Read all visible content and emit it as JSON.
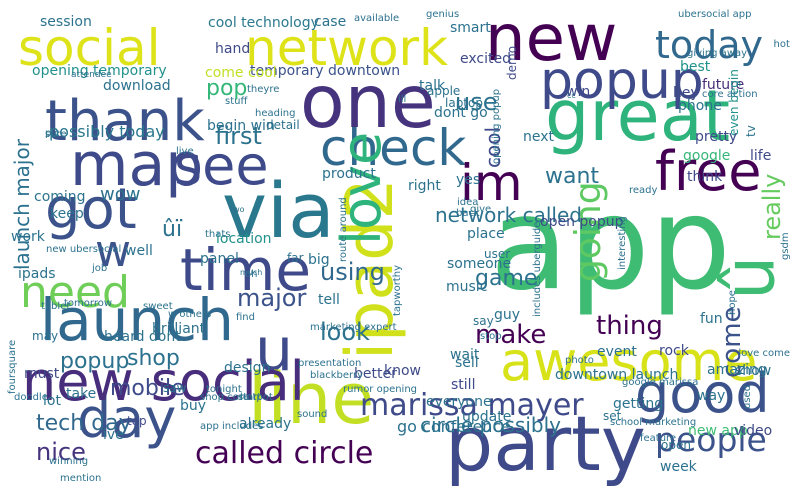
{
  "word_cloud": {
    "words": [
      {
        "text": "app",
        "color": "#3fbc73"
      },
      {
        "text": "new",
        "color": "#440154"
      },
      {
        "text": "social",
        "color": "#dde318"
      },
      {
        "text": "network",
        "color": "#dde318"
      },
      {
        "text": "today",
        "color": "#31688e"
      },
      {
        "text": "great",
        "color": "#2eb37c"
      },
      {
        "text": "popup",
        "color": "#3e4a89"
      },
      {
        "text": "one",
        "color": "#46337e"
      },
      {
        "text": "thank",
        "color": "#3b528b"
      },
      {
        "text": "check",
        "color": "#31688e"
      },
      {
        "text": "map",
        "color": "#3e4a89"
      },
      {
        "text": "see",
        "color": "#3e4a89"
      },
      {
        "text": "im",
        "color": "#440154"
      },
      {
        "text": "free",
        "color": "#440154"
      },
      {
        "text": "got",
        "color": "#3b528b"
      },
      {
        "text": "via",
        "color": "#2a788e"
      },
      {
        "text": "ipad2",
        "color": "#d0e11c"
      },
      {
        "text": "time",
        "color": "#3e4a89"
      },
      {
        "text": "going",
        "color": "#5ec962"
      },
      {
        "text": "launch",
        "color": "#31688e"
      },
      {
        "text": "w",
        "color": "#3b528b"
      },
      {
        "text": "u",
        "color": "#3e4a89"
      },
      {
        "text": "need",
        "color": "#6ece58"
      },
      {
        "text": "û",
        "color": "#3fbc73"
      },
      {
        "text": "ûï",
        "color": "#2c728e"
      },
      {
        "text": "awesome",
        "color": "#d8e219"
      },
      {
        "text": "good",
        "color": "#3b528b"
      },
      {
        "text": "line",
        "color": "#c2df23"
      },
      {
        "text": "party",
        "color": "#3e4a89"
      },
      {
        "text": "day",
        "color": "#3b528b"
      },
      {
        "text": "new social",
        "color": "#472d7b"
      },
      {
        "text": "marissa mayer",
        "color": "#3e4a89"
      },
      {
        "text": "people",
        "color": "#3b528b"
      },
      {
        "text": "called circle",
        "color": "#440154"
      },
      {
        "text": "love",
        "color": "#2eb37c"
      },
      {
        "text": "network called",
        "color": "#2c728e"
      },
      {
        "text": "first",
        "color": "#2c728e"
      },
      {
        "text": "pop",
        "color": "#35b779"
      },
      {
        "text": "use",
        "color": "#2c728e"
      },
      {
        "text": "want",
        "color": "#2c728e"
      },
      {
        "text": "cool",
        "color": "#3e4a89"
      },
      {
        "text": "really",
        "color": "#65cb5e"
      },
      {
        "text": "come",
        "color": "#3b528b"
      },
      {
        "text": "make",
        "color": "#440154"
      },
      {
        "text": "thing",
        "color": "#440154"
      },
      {
        "text": "look",
        "color": "#2c728e"
      },
      {
        "text": "major",
        "color": "#3b528b"
      },
      {
        "text": "game",
        "color": "#2c728e"
      },
      {
        "text": "using",
        "color": "#31688e"
      },
      {
        "text": "nice",
        "color": "#46337e"
      },
      {
        "text": "tech day",
        "color": "#31688e"
      },
      {
        "text": "mobile",
        "color": "#3e4a89"
      },
      {
        "text": "shop",
        "color": "#2c728e"
      },
      {
        "text": "popup",
        "color": "#2c728e"
      },
      {
        "text": "launch major",
        "color": "#2c728e"
      },
      {
        "text": "wow",
        "color": "#2c728e"
      },
      {
        "text": "circle possibly",
        "color": "#2c728e"
      },
      {
        "text": "go conference",
        "color": "#2c728e"
      },
      {
        "text": "cool technology",
        "color": "#2a788e"
      },
      {
        "text": "session",
        "color": "#2c728e"
      },
      {
        "text": "case",
        "color": "#2c728e"
      },
      {
        "text": "opening temporary",
        "color": "#21918c"
      },
      {
        "text": "temporary downtown",
        "color": "#3b528b"
      },
      {
        "text": "possibly today",
        "color": "#2a788e"
      },
      {
        "text": "open popup",
        "color": "#3e4a89"
      },
      {
        "text": "best",
        "color": "#21918c"
      },
      {
        "text": "phone",
        "color": "#2c728e"
      },
      {
        "text": "future",
        "color": "#472d7b"
      },
      {
        "text": "download",
        "color": "#2c728e"
      },
      {
        "text": "begin win",
        "color": "#2c728e"
      },
      {
        "text": "hand",
        "color": "#3e4a89"
      },
      {
        "text": "come cool",
        "color": "#c2df23"
      },
      {
        "text": "excited",
        "color": "#3e4a89"
      },
      {
        "text": "smart",
        "color": "#2c728e"
      },
      {
        "text": "demo",
        "color": "#3e4a89"
      },
      {
        "text": "talk",
        "color": "#2c728e"
      },
      {
        "text": "hey",
        "color": "#3e4a89"
      },
      {
        "text": "laptop",
        "color": "#2c728e"
      },
      {
        "text": "win",
        "color": "#3e4a89"
      },
      {
        "text": "dont go",
        "color": "#2c728e"
      },
      {
        "text": "next",
        "color": "#2c728e"
      },
      {
        "text": "think",
        "color": "#3e4a89"
      },
      {
        "text": "google",
        "color": "#35b779"
      },
      {
        "text": "even begin",
        "color": "#21918c"
      },
      {
        "text": "life",
        "color": "#3e4a89"
      },
      {
        "text": "pretty",
        "color": "#3e4a89"
      },
      {
        "text": "product",
        "color": "#2c728e"
      },
      {
        "text": "right",
        "color": "#2c728e"
      },
      {
        "text": "yes",
        "color": "#2c728e"
      },
      {
        "text": "coming",
        "color": "#2c728e"
      },
      {
        "text": "keep",
        "color": "#2c728e"
      },
      {
        "text": "work",
        "color": "#2c728e"
      },
      {
        "text": "location",
        "color": "#21918c"
      },
      {
        "text": "panel",
        "color": "#2c728e"
      },
      {
        "text": "big",
        "color": "#2c728e"
      },
      {
        "text": "ipads",
        "color": "#2c728e"
      },
      {
        "text": "well",
        "color": "#2c728e"
      },
      {
        "text": "far",
        "color": "#2c728e"
      },
      {
        "text": "tell",
        "color": "#2c728e"
      },
      {
        "text": "place",
        "color": "#2c728e"
      },
      {
        "text": "someone",
        "color": "#2c728e"
      },
      {
        "text": "user",
        "color": "#2c728e"
      },
      {
        "text": "music",
        "color": "#2c728e"
      },
      {
        "text": "guy",
        "color": "#2c728e"
      },
      {
        "text": "event",
        "color": "#2c728e"
      },
      {
        "text": "rock",
        "color": "#3e4a89"
      },
      {
        "text": "fun",
        "color": "#2c728e"
      },
      {
        "text": "amazing",
        "color": "#2c728e"
      },
      {
        "text": "show",
        "color": "#2c728e"
      },
      {
        "text": "may",
        "color": "#2c728e"
      },
      {
        "text": "brilliant",
        "color": "#2c728e"
      },
      {
        "text": "heard dont",
        "color": "#2c728e"
      },
      {
        "text": "design",
        "color": "#2c728e"
      },
      {
        "text": "better",
        "color": "#3e4a89"
      },
      {
        "text": "know",
        "color": "#3e4a89"
      },
      {
        "text": "wait",
        "color": "#2c728e"
      },
      {
        "text": "say",
        "color": "#2c728e"
      },
      {
        "text": "must",
        "color": "#3e4a89"
      },
      {
        "text": "lot",
        "color": "#2c728e"
      },
      {
        "text": "take",
        "color": "#2c728e"
      },
      {
        "text": "buy",
        "color": "#2c728e"
      },
      {
        "text": "already",
        "color": "#2c728e"
      },
      {
        "text": "still",
        "color": "#3e4a89"
      },
      {
        "text": "sell",
        "color": "#2c728e"
      },
      {
        "text": "update",
        "color": "#2c728e"
      },
      {
        "text": "everyone",
        "color": "#2c728e"
      },
      {
        "text": "downtown launch",
        "color": "#2c728e"
      },
      {
        "text": "getting",
        "color": "#2c728e"
      },
      {
        "text": "way",
        "color": "#2c728e"
      },
      {
        "text": "new app",
        "color": "#3fbc73"
      },
      {
        "text": "week",
        "color": "#2c728e"
      },
      {
        "text": "video",
        "color": "#3e4a89"
      },
      {
        "text": "ive",
        "color": "#2c728e"
      },
      {
        "text": "top",
        "color": "#3e4a89"
      },
      {
        "text": "saw",
        "color": "#2c728e"
      },
      {
        "text": "set",
        "color": "#2c728e"
      },
      {
        "text": "open",
        "color": "#2c728e"
      },
      {
        "text": "ubersocial app",
        "color": "#2c728e"
      },
      {
        "text": "giving away",
        "color": "#2c728e"
      },
      {
        "text": "core action",
        "color": "#2c728e"
      },
      {
        "text": "available",
        "color": "#2c728e"
      },
      {
        "text": "genius",
        "color": "#2c728e"
      },
      {
        "text": "attendee",
        "color": "#2c728e"
      },
      {
        "text": "stuff",
        "color": "#2c728e"
      },
      {
        "text": "heading",
        "color": "#2c728e"
      },
      {
        "text": "detail",
        "color": "#2c728e"
      },
      {
        "text": "theyre",
        "color": "#2c728e"
      },
      {
        "text": "apple",
        "color": "#2c728e"
      },
      {
        "text": "hot",
        "color": "#2c728e"
      },
      {
        "text": "ill",
        "color": "#2c728e"
      },
      {
        "text": "opening popup",
        "color": "#2c728e"
      },
      {
        "text": "cc",
        "color": "#2c728e"
      },
      {
        "text": "tv",
        "color": "#2c728e"
      },
      {
        "text": "pic",
        "color": "#2c728e"
      },
      {
        "text": "sure",
        "color": "#2c728e"
      },
      {
        "text": "live",
        "color": "#2c728e"
      },
      {
        "text": "ready",
        "color": "#2c728e"
      },
      {
        "text": "back",
        "color": "#2c728e"
      },
      {
        "text": "give",
        "color": "#2c728e"
      },
      {
        "text": "idea",
        "color": "#2c728e"
      },
      {
        "text": "two",
        "color": "#2c728e"
      },
      {
        "text": "thats",
        "color": "#2c728e"
      },
      {
        "text": "route around",
        "color": "#2c728e"
      },
      {
        "text": "new ubersocial",
        "color": "#2c728e"
      },
      {
        "text": "job",
        "color": "#2c728e"
      },
      {
        "text": "tomorrow",
        "color": "#2c728e"
      },
      {
        "text": "much",
        "color": "#2c728e"
      },
      {
        "text": "oh",
        "color": "#2c728e"
      },
      {
        "text": "tablet",
        "color": "#2c728e"
      },
      {
        "text": "sweet",
        "color": "#2c728e"
      },
      {
        "text": "w others",
        "color": "#2c728e"
      },
      {
        "text": "find",
        "color": "#2c728e"
      },
      {
        "text": "marketing expert",
        "color": "#2c728e"
      },
      {
        "text": "stop",
        "color": "#2c728e"
      },
      {
        "text": "interesting",
        "color": "#2c728e"
      },
      {
        "text": "includes uberguide",
        "color": "#2c728e"
      },
      {
        "text": "hope",
        "color": "#2c728e"
      },
      {
        "text": "gsdm",
        "color": "#2c728e"
      },
      {
        "text": "photo",
        "color": "#2c728e"
      },
      {
        "text": "google marissa",
        "color": "#2c728e"
      },
      {
        "text": "love come",
        "color": "#2c728e"
      },
      {
        "text": "foursquare",
        "color": "#2c728e"
      },
      {
        "text": "tonight",
        "color": "#2c728e"
      },
      {
        "text": "presentation",
        "color": "#2c728e"
      },
      {
        "text": "blackberry",
        "color": "#2c728e"
      },
      {
        "text": "rumor opening",
        "color": "#2c728e"
      },
      {
        "text": "doodle",
        "color": "#2c728e"
      },
      {
        "text": "start",
        "color": "#2c728e"
      },
      {
        "text": "shop core",
        "color": "#2c728e"
      },
      {
        "text": "app includes",
        "color": "#2c728e"
      },
      {
        "text": "sound",
        "color": "#2c728e"
      },
      {
        "text": "used",
        "color": "#2c728e"
      },
      {
        "text": "winning",
        "color": "#2c728e"
      },
      {
        "text": "mention",
        "color": "#2c728e"
      },
      {
        "text": "school marketing",
        "color": "#2c728e"
      },
      {
        "text": "feature",
        "color": "#2c728e"
      },
      {
        "text": "tapworthy",
        "color": "#2c728e"
      },
      {
        "text": "hotpot",
        "color": "#2c728e"
      },
      {
        "text": "release",
        "color": "#2c728e"
      },
      {
        "text": "even",
        "color": "#2c728e"
      },
      {
        "text": "book",
        "color": "#2c728e"
      },
      {
        "text": "ill",
        "color": "#2c728e"
      }
    ]
  }
}
